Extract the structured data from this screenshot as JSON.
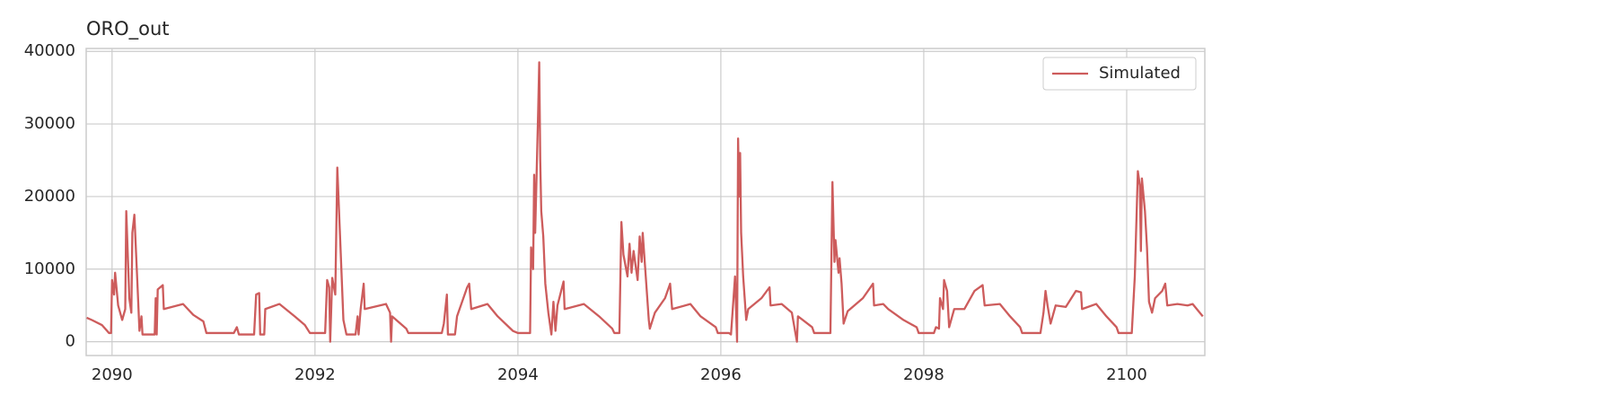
{
  "chart_data": {
    "type": "line",
    "title": "ORO_out",
    "x": [
      2089.75,
      2089.8,
      2089.9,
      2089.97,
      2089.99,
      2090.0,
      2090.02,
      2090.03,
      2090.06,
      2090.1,
      2090.13,
      2090.14,
      2090.17,
      2090.19,
      2090.2,
      2090.22,
      2090.25,
      2090.27,
      2090.29,
      2090.3,
      2090.42,
      2090.43,
      2090.44,
      2090.45,
      2090.5,
      2090.51,
      2090.7,
      2090.8,
      2090.9,
      2090.93,
      2091.2,
      2091.23,
      2091.25,
      2091.4,
      2091.42,
      2091.45,
      2091.46,
      2091.5,
      2091.51,
      2091.65,
      2091.8,
      2091.9,
      2091.95,
      2092.1,
      2092.12,
      2092.14,
      2092.15,
      2092.17,
      2092.2,
      2092.22,
      2092.24,
      2092.28,
      2092.31,
      2092.4,
      2092.42,
      2092.43,
      2092.45,
      2092.48,
      2092.49,
      2092.7,
      2092.74,
      2092.75,
      2092.76,
      2092.9,
      2092.92,
      2093.25,
      2093.27,
      2093.3,
      2093.31,
      2093.38,
      2093.4,
      2093.5,
      2093.52,
      2093.54,
      2093.7,
      2093.8,
      2093.95,
      2094.0,
      2094.12,
      2094.13,
      2094.15,
      2094.16,
      2094.17,
      2094.2,
      2094.21,
      2094.22,
      2094.23,
      2094.25,
      2094.27,
      2094.3,
      2094.33,
      2094.35,
      2094.37,
      2094.39,
      2094.45,
      2094.46,
      2094.65,
      2094.8,
      2094.93,
      2094.95,
      2095.0,
      2095.02,
      2095.04,
      2095.08,
      2095.1,
      2095.12,
      2095.14,
      2095.18,
      2095.2,
      2095.22,
      2095.23,
      2095.25,
      2095.29,
      2095.3,
      2095.35,
      2095.45,
      2095.5,
      2095.52,
      2095.7,
      2095.8,
      2095.95,
      2095.97,
      2096.08,
      2096.1,
      2096.14,
      2096.16,
      2096.17,
      2096.18,
      2096.19,
      2096.2,
      2096.22,
      2096.25,
      2096.27,
      2096.4,
      2096.48,
      2096.49,
      2096.6,
      2096.7,
      2096.75,
      2096.76,
      2096.9,
      2096.92,
      2097.08,
      2097.1,
      2097.12,
      2097.13,
      2097.16,
      2097.17,
      2097.19,
      2097.21,
      2097.25,
      2097.4,
      2097.5,
      2097.51,
      2097.6,
      2097.65,
      2097.8,
      2097.93,
      2097.95,
      2098.1,
      2098.12,
      2098.15,
      2098.16,
      2098.19,
      2098.2,
      2098.23,
      2098.25,
      2098.3,
      2098.4,
      2098.5,
      2098.58,
      2098.6,
      2098.75,
      2098.85,
      2098.95,
      2098.97,
      2099.15,
      2099.18,
      2099.2,
      2099.22,
      2099.25,
      2099.3,
      2099.4,
      2099.5,
      2099.55,
      2099.56,
      2099.7,
      2099.8,
      2099.9,
      2099.92,
      2100.05,
      2100.08,
      2100.11,
      2100.13,
      2100.14,
      2100.15,
      2100.18,
      2100.2,
      2100.22,
      2100.25,
      2100.28,
      2100.35,
      2100.38,
      2100.4,
      2100.5,
      2100.6,
      2100.65,
      2100.75
    ],
    "series": [
      {
        "name": "Simulated",
        "color": "#cd5c5c",
        "values": [
          3300,
          3000,
          2300,
          1200,
          1200,
          8500,
          6500,
          9500,
          5000,
          3000,
          4500,
          18000,
          6000,
          4000,
          15000,
          17500,
          8000,
          1500,
          3500,
          1000,
          1000,
          6000,
          1000,
          7200,
          7800,
          4500,
          5200,
          3700,
          2800,
          1200,
          1200,
          2000,
          1000,
          1000,
          6500,
          6700,
          1000,
          1000,
          4500,
          5200,
          3500,
          2300,
          1200,
          1200,
          8500,
          7500,
          0,
          8800,
          6500,
          24000,
          17000,
          3000,
          1000,
          1000,
          3500,
          1000,
          4500,
          8000,
          4500,
          5200,
          4000,
          0,
          3500,
          1800,
          1200,
          1200,
          2500,
          6500,
          1000,
          1000,
          3500,
          7500,
          8000,
          4500,
          5200,
          3500,
          1500,
          1200,
          1200,
          13000,
          10000,
          23000,
          15000,
          32000,
          38500,
          25000,
          18000,
          14500,
          8000,
          4000,
          1000,
          5500,
          1500,
          5000,
          8300,
          4500,
          5200,
          3500,
          1800,
          1200,
          1200,
          16500,
          12000,
          9000,
          13500,
          9500,
          12500,
          8500,
          14500,
          11000,
          15000,
          11000,
          3000,
          1800,
          4000,
          6000,
          8000,
          4500,
          5200,
          3500,
          2000,
          1200,
          1200,
          1000,
          9000,
          0,
          28000,
          20000,
          26000,
          15000,
          9000,
          3000,
          4500,
          6000,
          7500,
          5000,
          5200,
          4000,
          0,
          3500,
          2000,
          1200,
          1200,
          22000,
          11000,
          14000,
          9500,
          11500,
          8000,
          2500,
          4200,
          6000,
          8000,
          5000,
          5200,
          4500,
          3000,
          2000,
          1200,
          1200,
          2000,
          1800,
          6000,
          4500,
          8500,
          7000,
          2000,
          4500,
          4500,
          7000,
          7800,
          5000,
          5200,
          3500,
          2000,
          1200,
          1200,
          4000,
          7000,
          5000,
          2500,
          5000,
          4800,
          7000,
          6800,
          4500,
          5200,
          3500,
          2000,
          1200,
          1200,
          9000,
          23500,
          21500,
          12500,
          22500,
          18000,
          13000,
          5500,
          4000,
          6000,
          7000,
          8000,
          5000,
          5200,
          5000,
          5200,
          3500
        ]
      }
    ],
    "xlim": [
      2089.745,
      2100.77
    ],
    "xticks": [
      2090,
      2092,
      2094,
      2096,
      2098,
      2100
    ],
    "ylim": [
      -1900,
      40400
    ],
    "yticks": [
      0,
      10000,
      20000,
      30000,
      40000
    ],
    "grid": true,
    "legend": "upper right"
  }
}
